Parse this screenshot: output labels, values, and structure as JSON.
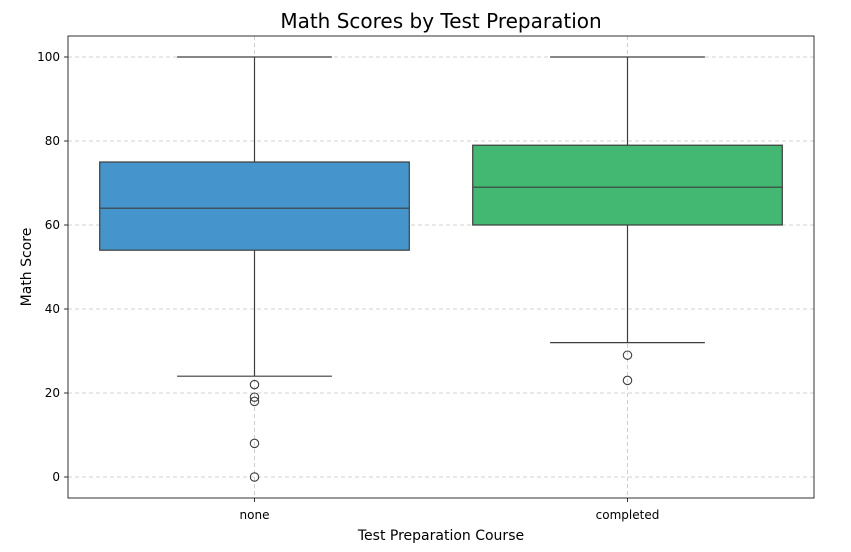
{
  "chart_data": {
    "type": "box",
    "title": "Math Scores by Test Preparation",
    "xlabel": "Test Preparation Course",
    "ylabel": "Math Score",
    "ylim": [
      -5,
      105
    ],
    "yticks": [
      0,
      20,
      40,
      60,
      80,
      100
    ],
    "grid": true,
    "categories": [
      "none",
      "completed"
    ],
    "series": [
      {
        "category": "none",
        "color": "#4595cc",
        "whisker_low": 24,
        "q1": 54,
        "median": 64,
        "q3": 75,
        "whisker_high": 100,
        "outliers": [
          22,
          19,
          18,
          8,
          0
        ]
      },
      {
        "category": "completed",
        "color": "#42b873",
        "whisker_low": 32,
        "q1": 60,
        "median": 69,
        "q3": 79,
        "whisker_high": 100,
        "outliers": [
          29,
          23
        ]
      }
    ]
  }
}
